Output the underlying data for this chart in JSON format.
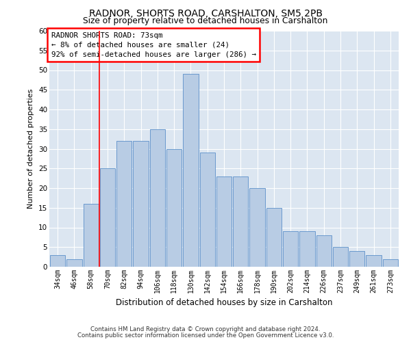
{
  "title": "RADNOR, SHORTS ROAD, CARSHALTON, SM5 2PB",
  "subtitle": "Size of property relative to detached houses in Carshalton",
  "xlabel": "Distribution of detached houses by size in Carshalton",
  "ylabel": "Number of detached properties",
  "categories": [
    "34sqm",
    "46sqm",
    "58sqm",
    "70sqm",
    "82sqm",
    "94sqm",
    "106sqm",
    "118sqm",
    "130sqm",
    "142sqm",
    "154sqm",
    "166sqm",
    "178sqm",
    "190sqm",
    "202sqm",
    "214sqm",
    "226sqm",
    "237sqm",
    "249sqm",
    "261sqm",
    "273sqm"
  ],
  "values": [
    3,
    2,
    16,
    25,
    32,
    32,
    35,
    30,
    49,
    29,
    23,
    23,
    20,
    15,
    9,
    9,
    8,
    5,
    4,
    3,
    2
  ],
  "bar_color": "#b8cce4",
  "bar_edge_color": "#5b8fc9",
  "bg_color": "#dce6f1",
  "annotation_box_text": "RADNOR SHORTS ROAD: 73sqm\n← 8% of detached houses are smaller (24)\n92% of semi-detached houses are larger (286) →",
  "red_line_x": 2.5,
  "ylim": [
    0,
    60
  ],
  "yticks": [
    0,
    5,
    10,
    15,
    20,
    25,
    30,
    35,
    40,
    45,
    50,
    55,
    60
  ],
  "footer1": "Contains HM Land Registry data © Crown copyright and database right 2024.",
  "footer2": "Contains public sector information licensed under the Open Government Licence v3.0."
}
